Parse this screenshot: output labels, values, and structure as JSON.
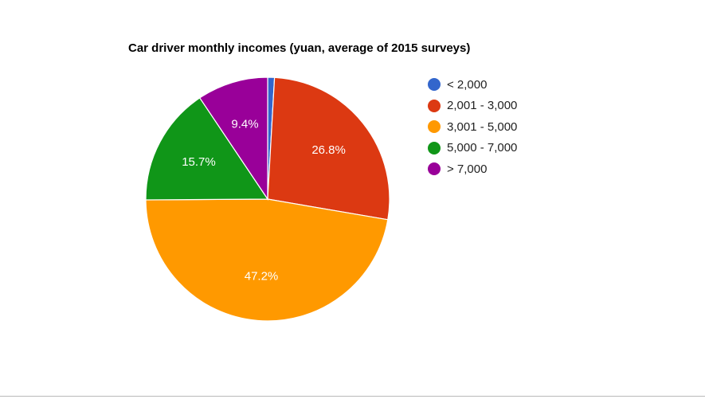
{
  "chart_data": {
    "type": "pie",
    "title": "Car driver monthly incomes (yuan, average of 2015 surveys)",
    "categories": [
      "< 2,000",
      "2,001 - 3,000",
      "3,001 - 5,000",
      "5,000 - 7,000",
      "> 7,000"
    ],
    "values": [
      0.9,
      26.8,
      47.2,
      15.7,
      9.4
    ],
    "slice_labels": [
      "",
      "26.8%",
      "47.2%",
      "15.7%",
      "9.4%"
    ],
    "colors": [
      "#3366cc",
      "#dc3912",
      "#ff9900",
      "#109618",
      "#990099"
    ],
    "legend": "right"
  }
}
